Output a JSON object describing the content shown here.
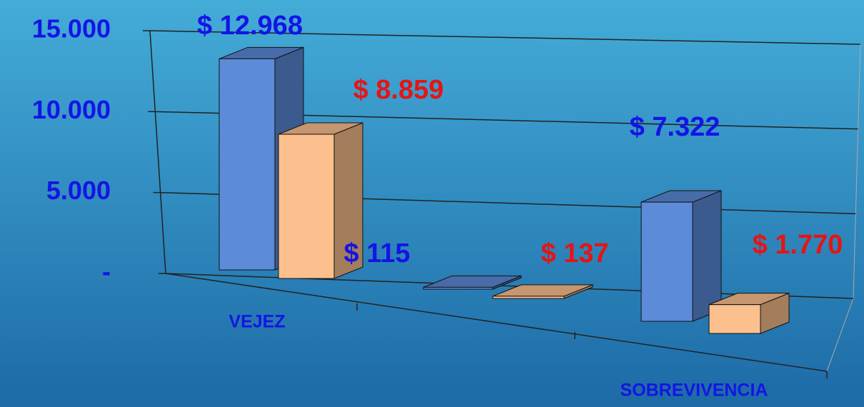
{
  "chart_data": {
    "type": "bar3d",
    "categories": [
      "VEJEZ",
      null,
      "SOBREVIVENCIA"
    ],
    "series": [
      {
        "color": "#5b8bd9",
        "values": [
          12968,
          115,
          7322
        ],
        "value_labels": [
          "$ 12.968",
          "$ 115",
          "$ 7.322"
        ]
      },
      {
        "color": "#fcc08e",
        "values": [
          8859,
          137,
          1770
        ],
        "value_labels": [
          "$ 8.859",
          "$ 137",
          "$ 1.770"
        ]
      }
    ],
    "ylim": [
      0,
      15000
    ],
    "yticks": [
      {
        "value": 0,
        "label": "-"
      },
      {
        "value": 5000,
        "label": "5.000"
      },
      {
        "value": 10000,
        "label": "10.000"
      },
      {
        "value": 15000,
        "label": "15.000"
      }
    ],
    "grid": true
  }
}
